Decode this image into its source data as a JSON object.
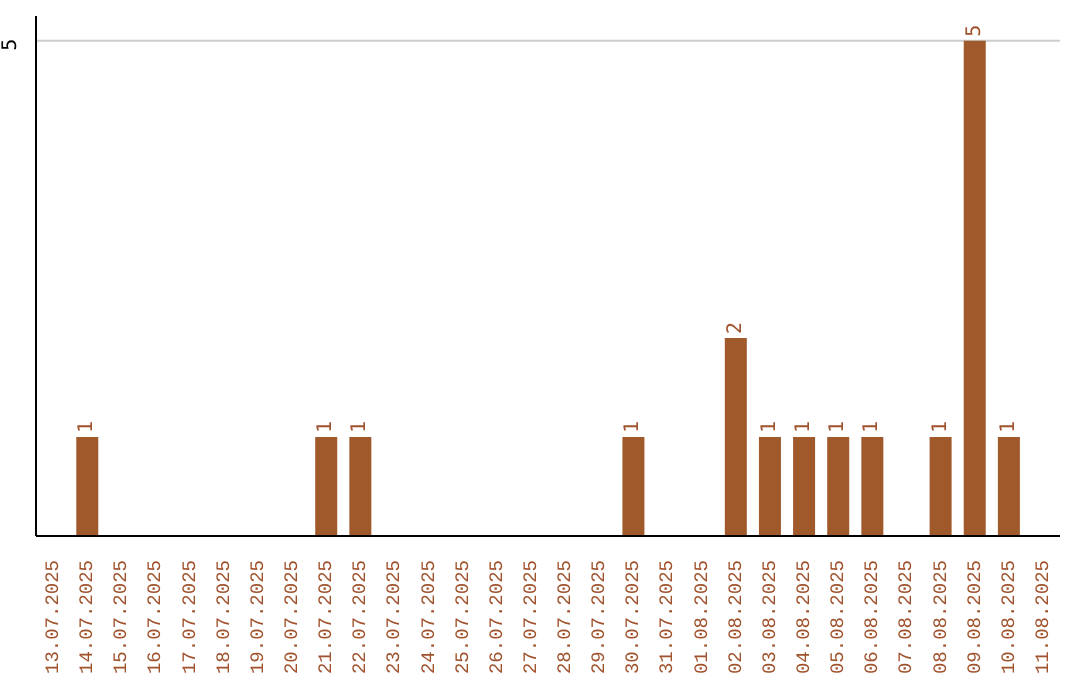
{
  "chart_data": {
    "type": "bar",
    "categories": [
      "13.07.2025",
      "14.07.2025",
      "15.07.2025",
      "16.07.2025",
      "17.07.2025",
      "18.07.2025",
      "19.07.2025",
      "20.07.2025",
      "21.07.2025",
      "22.07.2025",
      "23.07.2025",
      "24.07.2025",
      "25.07.2025",
      "26.07.2025",
      "27.07.2025",
      "28.07.2025",
      "29.07.2025",
      "30.07.2025",
      "31.07.2025",
      "01.08.2025",
      "02.08.2025",
      "03.08.2025",
      "04.08.2025",
      "05.08.2025",
      "06.08.2025",
      "07.08.2025",
      "08.08.2025",
      "09.08.2025",
      "10.08.2025",
      "11.08.2025"
    ],
    "values": [
      0,
      1,
      0,
      0,
      0,
      0,
      0,
      0,
      1,
      1,
      0,
      0,
      0,
      0,
      0,
      0,
      0,
      1,
      0,
      0,
      2,
      1,
      1,
      1,
      1,
      0,
      1,
      5,
      1,
      0
    ],
    "value_labels": [
      null,
      "1",
      null,
      null,
      null,
      null,
      null,
      null,
      "1",
      "1",
      null,
      null,
      null,
      null,
      null,
      null,
      null,
      "1",
      null,
      null,
      "2",
      "1",
      "1",
      "1",
      "1",
      null,
      "1",
      "5",
      "1",
      null
    ],
    "color": "#a0592a",
    "ylim": [
      0,
      5.25
    ],
    "yticks": [
      5
    ],
    "grid": "y"
  }
}
